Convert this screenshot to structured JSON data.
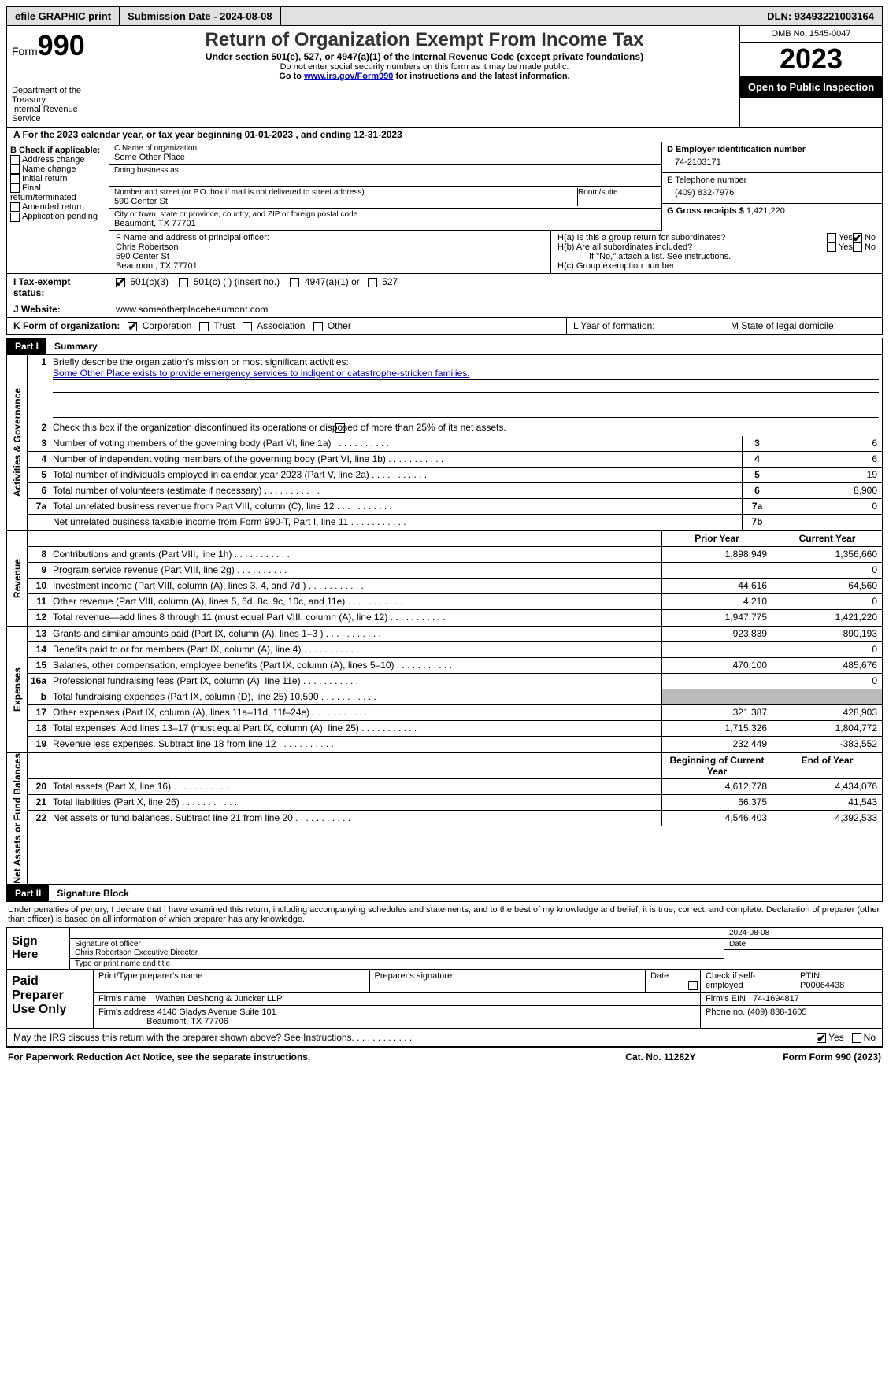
{
  "topbar": {
    "efile": "efile GRAPHIC print",
    "submission": "Submission Date - 2024-08-08",
    "dln": "DLN: 93493221003164"
  },
  "header": {
    "form": "Form",
    "form_num": "990",
    "title": "Return of Organization Exempt From Income Tax",
    "subtitle": "Under section 501(c), 527, or 4947(a)(1) of the Internal Revenue Code (except private foundations)",
    "ssn_note": "Do not enter social security numbers on this form as it may be made public.",
    "goto": "Go to ",
    "goto_link": "www.irs.gov/Form990",
    "goto_suffix": " for instructions and the latest information.",
    "dept": "Department of the Treasury",
    "irs": "Internal Revenue Service",
    "omb": "OMB No. 1545-0047",
    "year": "2023",
    "inspect": "Open to Public Inspection"
  },
  "period": "A For the 2023 calendar year, or tax year beginning 01-01-2023   , and ending 12-31-2023",
  "boxB": {
    "label": "B Check if applicable:",
    "items": [
      "Address change",
      "Name change",
      "Initial return",
      "Final return/terminated",
      "Amended return",
      "Application pending"
    ]
  },
  "boxC": {
    "name_lab": "C Name of organization",
    "name": "Some Other Place",
    "dba_lab": "Doing business as",
    "addr_lab": "Number and street (or P.O. box if mail is not delivered to street address)",
    "room_lab": "Room/suite",
    "addr": "590 Center St",
    "city_lab": "City or town, state or province, country, and ZIP or foreign postal code",
    "city": "Beaumont, TX  77701"
  },
  "boxD": {
    "lab": "D Employer identification number",
    "val": "74-2103171"
  },
  "boxE": {
    "lab": "E Telephone number",
    "val": "(409) 832-7976"
  },
  "boxG": {
    "lab": "G Gross receipts $",
    "val": "1,421,220"
  },
  "boxF": {
    "lab": "F  Name and address of principal officer:",
    "name": "Chris Robertson",
    "addr1": "590 Center St",
    "addr2": "Beaumont, TX  77701"
  },
  "boxH": {
    "a": "H(a)  Is this a group return for subordinates?",
    "b": "H(b)  Are all subordinates included?",
    "note": "If \"No,\" attach a list. See instructions.",
    "c": "H(c)  Group exemption number",
    "yes": "Yes",
    "no": "No"
  },
  "boxI": {
    "lab": "I   Tax-exempt status:",
    "c3": "501(c)(3)",
    "c": "501(c) (  ) (insert no.)",
    "a1": "4947(a)(1) or",
    "s527": "527"
  },
  "boxJ": {
    "lab": "J   Website:",
    "val": "www.someotherplacebeaumont.com"
  },
  "boxK": {
    "lab": "K Form of organization:",
    "corp": "Corporation",
    "trust": "Trust",
    "assoc": "Association",
    "other": "Other"
  },
  "boxL": "L Year of formation:",
  "boxM": "M State of legal domicile:",
  "part1": {
    "tag": "Part I",
    "title": "Summary"
  },
  "sections": {
    "ag": "Activities & Governance",
    "rev": "Revenue",
    "exp": "Expenses",
    "net": "Net Assets or Fund Balances"
  },
  "line1": {
    "lab": "Briefly describe the organization's mission or most significant activities:",
    "val": "Some Other Place exists to provide emergency services to indigent or catastrophe-stricken families."
  },
  "line2": "Check this box        if the organization discontinued its operations or disposed of more than 25% of its net assets.",
  "rows_ag": [
    {
      "n": "3",
      "d": "Number of voting members of the governing body (Part VI, line 1a)",
      "box": "3",
      "v": "6"
    },
    {
      "n": "4",
      "d": "Number of independent voting members of the governing body (Part VI, line 1b)",
      "box": "4",
      "v": "6"
    },
    {
      "n": "5",
      "d": "Total number of individuals employed in calendar year 2023 (Part V, line 2a)",
      "box": "5",
      "v": "19"
    },
    {
      "n": "6",
      "d": "Total number of volunteers (estimate if necessary)",
      "box": "6",
      "v": "8,900"
    },
    {
      "n": "7a",
      "d": "Total unrelated business revenue from Part VIII, column (C), line 12",
      "box": "7a",
      "v": "0"
    },
    {
      "n": "",
      "d": "Net unrelated business taxable income from Form 990-T, Part I, line 11",
      "box": "7b",
      "v": ""
    }
  ],
  "cols": {
    "prior": "Prior Year",
    "current": "Current Year",
    "begin": "Beginning of Current Year",
    "end": "End of Year"
  },
  "rows_rev": [
    {
      "n": "8",
      "d": "Contributions and grants (Part VIII, line 1h)",
      "p": "1,898,949",
      "c": "1,356,660"
    },
    {
      "n": "9",
      "d": "Program service revenue (Part VIII, line 2g)",
      "p": "",
      "c": "0"
    },
    {
      "n": "10",
      "d": "Investment income (Part VIII, column (A), lines 3, 4, and 7d )",
      "p": "44,616",
      "c": "64,560"
    },
    {
      "n": "11",
      "d": "Other revenue (Part VIII, column (A), lines 5, 6d, 8c, 9c, 10c, and 11e)",
      "p": "4,210",
      "c": "0"
    },
    {
      "n": "12",
      "d": "Total revenue—add lines 8 through 11 (must equal Part VIII, column (A), line 12)",
      "p": "1,947,775",
      "c": "1,421,220"
    }
  ],
  "rows_exp": [
    {
      "n": "13",
      "d": "Grants and similar amounts paid (Part IX, column (A), lines 1–3 )",
      "p": "923,839",
      "c": "890,193"
    },
    {
      "n": "14",
      "d": "Benefits paid to or for members (Part IX, column (A), line 4)",
      "p": "",
      "c": "0"
    },
    {
      "n": "15",
      "d": "Salaries, other compensation, employee benefits (Part IX, column (A), lines 5–10)",
      "p": "470,100",
      "c": "485,676"
    },
    {
      "n": "16a",
      "d": "Professional fundraising fees (Part IX, column (A), line 11e)",
      "p": "",
      "c": "0"
    },
    {
      "n": "b",
      "d": "Total fundraising expenses (Part IX, column (D), line 25) 10,590",
      "p": "SHADE",
      "c": "SHADE"
    },
    {
      "n": "17",
      "d": "Other expenses (Part IX, column (A), lines 11a–11d, 11f–24e)",
      "p": "321,387",
      "c": "428,903"
    },
    {
      "n": "18",
      "d": "Total expenses. Add lines 13–17 (must equal Part IX, column (A), line 25)",
      "p": "1,715,326",
      "c": "1,804,772"
    },
    {
      "n": "19",
      "d": "Revenue less expenses. Subtract line 18 from line 12",
      "p": "232,449",
      "c": "-383,552"
    }
  ],
  "rows_net": [
    {
      "n": "20",
      "d": "Total assets (Part X, line 16)",
      "p": "4,612,778",
      "c": "4,434,076"
    },
    {
      "n": "21",
      "d": "Total liabilities (Part X, line 26)",
      "p": "66,375",
      "c": "41,543"
    },
    {
      "n": "22",
      "d": "Net assets or fund balances. Subtract line 21 from line 20",
      "p": "4,546,403",
      "c": "4,392,533"
    }
  ],
  "part2": {
    "tag": "Part II",
    "title": "Signature Block"
  },
  "perjury": "Under penalties of perjury, I declare that I have examined this return, including accompanying schedules and statements, and to the best of my knowledge and belief, it is true, correct, and complete. Declaration of preparer (other than officer) is based on all information of which preparer has any knowledge.",
  "sign": {
    "here": "Sign Here",
    "sig_lab": "Signature of officer",
    "officer": "Chris Robertson  Executive Director",
    "type_lab": "Type or print name and title",
    "date_lab": "Date",
    "date": "2024-08-08"
  },
  "prep": {
    "title": "Paid Preparer Use Only",
    "name_lab": "Print/Type preparer's name",
    "sig_lab": "Preparer's signature",
    "date_lab": "Date",
    "self_lab": "Check        if self-employed",
    "ptin_lab": "PTIN",
    "ptin": "P00064438",
    "firm_lab": "Firm's name",
    "firm": "Wathen DeShong & Juncker LLP",
    "ein_lab": "Firm's EIN",
    "ein": "74-1694817",
    "addr_lab": "Firm's address",
    "addr1": "4140 Gladys Avenue Suite 101",
    "addr2": "Beaumont, TX  77706",
    "phone_lab": "Phone no.",
    "phone": "(409) 838-1605"
  },
  "discuss": "May the IRS discuss this return with the preparer shown above? See Instructions.",
  "footer": {
    "pra": "For Paperwork Reduction Act Notice, see the separate instructions.",
    "cat": "Cat. No. 11282Y",
    "form": "Form 990 (2023)"
  }
}
